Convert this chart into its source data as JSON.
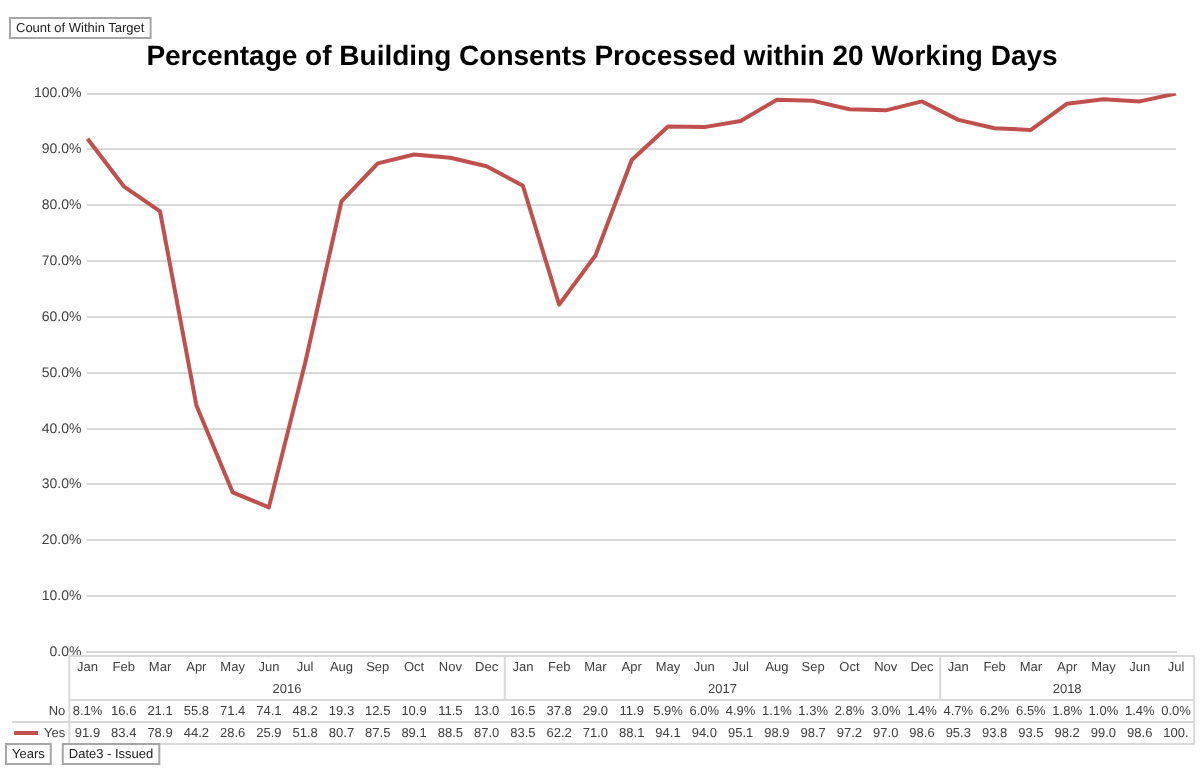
{
  "chart_data": {
    "type": "line",
    "title": "Percentage of Building Consents Processed within 20 Working Days",
    "categories": [
      "Jan",
      "Feb",
      "Mar",
      "Apr",
      "May",
      "Jun",
      "Jul",
      "Aug",
      "Sep",
      "Oct",
      "Nov",
      "Dec",
      "Jan",
      "Feb",
      "Mar",
      "Apr",
      "May",
      "Jun",
      "Jul",
      "Aug",
      "Sep",
      "Oct",
      "Nov",
      "Dec",
      "Jan",
      "Feb",
      "Mar",
      "Apr",
      "May",
      "Jun",
      "Jul"
    ],
    "series": [
      {
        "name": "Yes",
        "color": "#c0504d",
        "values": [
          91.9,
          83.4,
          78.9,
          44.2,
          28.6,
          25.9,
          51.8,
          80.7,
          87.5,
          89.1,
          88.5,
          87.0,
          83.5,
          62.2,
          71.0,
          88.1,
          94.1,
          94.0,
          95.1,
          98.9,
          98.7,
          97.2,
          97.0,
          98.6,
          95.3,
          93.8,
          93.5,
          98.2,
          99.0,
          98.6,
          100
        ],
        "value_labels": [
          "91.9",
          "83.4",
          "78.9",
          "44.2",
          "28.6",
          "25.9",
          "51.8",
          "80.7",
          "87.5",
          "89.1",
          "88.5",
          "87.0",
          "83.5",
          "62.2",
          "71.0",
          "88.1",
          "94.1",
          "94.0",
          "95.1",
          "98.9",
          "98.7",
          "97.2",
          "97.0",
          "98.6",
          "95.3",
          "93.8",
          "93.5",
          "98.2",
          "99.0",
          "98.6",
          "100."
        ]
      }
    ],
    "ylim": [
      0,
      100
    ],
    "yticks": [
      {
        "value": 0,
        "label": "0.0%"
      },
      {
        "value": 10,
        "label": "10.0%"
      },
      {
        "value": 20,
        "label": "20.0%"
      },
      {
        "value": 30,
        "label": "30.0%"
      },
      {
        "value": 40,
        "label": "40.0%"
      },
      {
        "value": 50,
        "label": "50.0%"
      },
      {
        "value": 60,
        "label": "60.0%"
      },
      {
        "value": 70,
        "label": "70.0%"
      },
      {
        "value": 80,
        "label": "80.0%"
      },
      {
        "value": 90,
        "label": "90.0%"
      },
      {
        "value": 100,
        "label": "100.0%"
      }
    ],
    "grid": "y",
    "legend": "bottom",
    "marker": "none",
    "line_style": "solid",
    "annotations": [
      "Count of Within Target",
      "Years",
      "Date3 - Issued",
      "2016",
      "2017",
      "2018",
      "No",
      "8.1%",
      "16.6",
      "21.1",
      "55.8",
      "71.4",
      "74.1",
      "48.2",
      "19.3",
      "12.5",
      "10.9",
      "11.5",
      "13.0",
      "16.5",
      "37.8",
      "29.0",
      "11.9",
      "5.9%",
      "6.0%",
      "4.9%",
      "1.1%",
      "1.3%",
      "2.8%",
      "3.0%",
      "1.4%",
      "4.7%",
      "6.2%",
      "6.5%",
      "1.8%",
      "1.0%",
      "1.4%",
      "0.0%"
    ]
  }
}
